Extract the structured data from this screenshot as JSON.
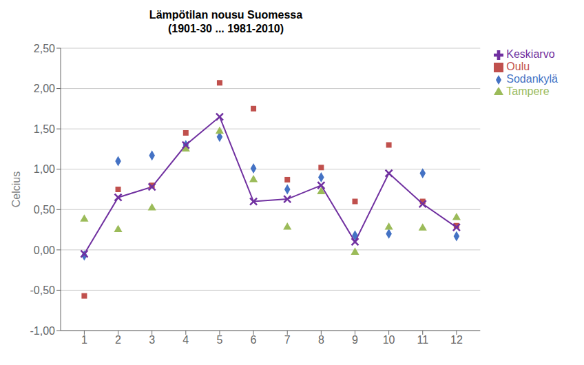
{
  "chart_data": {
    "type": "scatter",
    "title": "Lämpötilan nousu Suomessa\n(1901-30 ... 1981-2010)",
    "y_label": "Celcius",
    "x": [
      1,
      2,
      3,
      4,
      5,
      6,
      7,
      8,
      9,
      10,
      11,
      12
    ],
    "series": [
      {
        "name": "Sodankylä",
        "type": "scatter",
        "marker": "diamond",
        "color": "#4472C4",
        "values": [
          -0.07,
          1.1,
          1.17,
          1.3,
          1.4,
          1.01,
          0.75,
          0.9,
          0.18,
          0.2,
          0.95,
          0.17
        ]
      },
      {
        "name": "Oulu",
        "type": "scatter",
        "marker": "square",
        "color": "#C0504D",
        "values": [
          -0.57,
          0.75,
          0.8,
          1.45,
          2.07,
          1.75,
          0.87,
          1.02,
          0.6,
          1.3,
          0.6,
          0.3
        ]
      },
      {
        "name": "Tampere",
        "type": "scatter",
        "marker": "triangle",
        "color": "#9BBB59",
        "values": [
          0.38,
          0.25,
          0.52,
          1.25,
          1.47,
          0.87,
          0.28,
          0.72,
          -0.03,
          0.28,
          0.27,
          0.4
        ]
      },
      {
        "name": "Keskiarvo",
        "type": "line",
        "marker": "x",
        "line_style": "solid",
        "color": "#7030A0",
        "values": [
          -0.05,
          0.65,
          0.78,
          1.3,
          1.65,
          0.6,
          0.63,
          0.8,
          0.1,
          0.95,
          0.57,
          0.28
        ]
      }
    ],
    "xlim": [
      0.3,
      12.7
    ],
    "xticks": [
      1,
      2,
      3,
      4,
      5,
      6,
      7,
      8,
      9,
      10,
      11,
      12
    ],
    "ylim": [
      -1.0,
      2.5
    ],
    "yticks": [
      {
        "value": -1.0,
        "label": "-1,00"
      },
      {
        "value": -0.5,
        "label": "-0,50"
      },
      {
        "value": 0.0,
        "label": "0,00"
      },
      {
        "value": 0.5,
        "label": "0,50"
      },
      {
        "value": 1.0,
        "label": "1,00"
      },
      {
        "value": 1.5,
        "label": "1,50"
      },
      {
        "value": 2.0,
        "label": "2,00"
      },
      {
        "value": 2.5,
        "label": "2,50"
      }
    ],
    "grid": "y",
    "legend": "right"
  }
}
